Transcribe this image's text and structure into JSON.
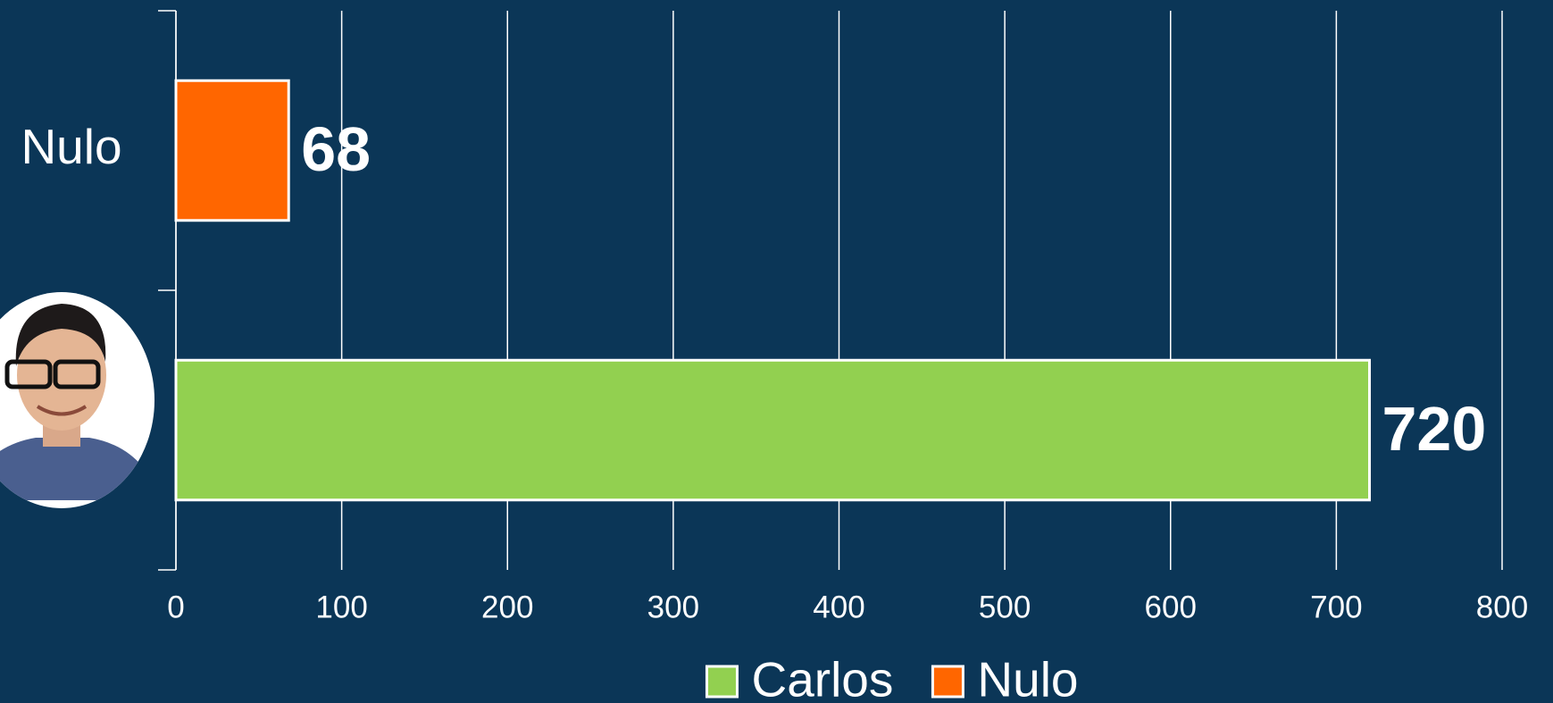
{
  "chart_data": {
    "type": "bar",
    "orientation": "horizontal",
    "categories": [
      "Nulo",
      null
    ],
    "series": [
      {
        "name": "Carlos",
        "color": "#92d050",
        "values": [
          null,
          720
        ]
      },
      {
        "name": "Nulo",
        "color": "#ff6600",
        "values": [
          68,
          null
        ]
      }
    ],
    "xlim": [
      0,
      800
    ],
    "xticks": [
      0,
      100,
      200,
      300,
      400,
      500,
      600,
      700,
      800
    ],
    "grid": true,
    "legend": "bottom"
  }
}
